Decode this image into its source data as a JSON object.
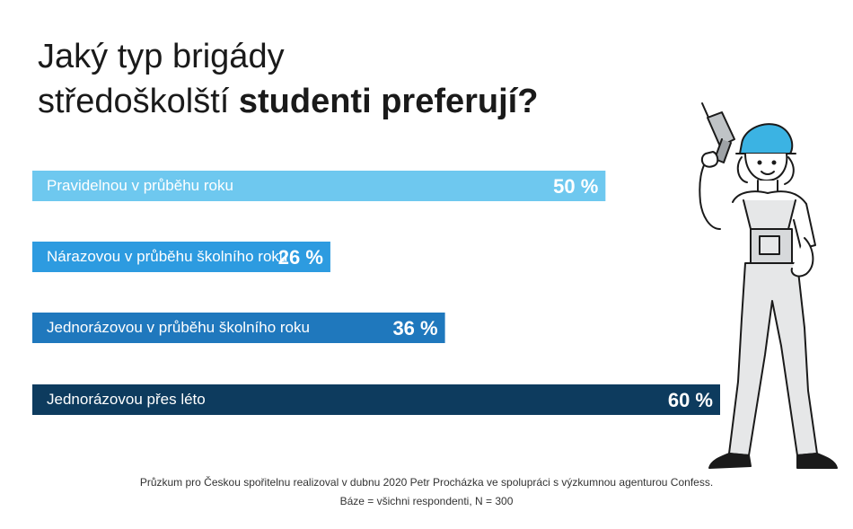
{
  "title": {
    "line1": "Jaký typ brigády",
    "line2_regular": "středoškolští ",
    "line2_bold": "studenti preferují?"
  },
  "chart_data": {
    "type": "bar",
    "orientation": "horizontal",
    "categories": [
      "Pravidelnou v průběhu roku",
      "Nárazovou v průběhu školního roku",
      "Jednorázovou v průběhu školního roku",
      "Jednorázovou přes léto"
    ],
    "values": [
      50,
      26,
      36,
      60
    ],
    "value_labels": [
      "50 %",
      "26 %",
      "36 %",
      "60 %"
    ],
    "colors": [
      "#6ec8ef",
      "#2d9be0",
      "#1f78bd",
      "#0d3b5e"
    ],
    "xlim": [
      0,
      60
    ],
    "grid": false
  },
  "footnote": {
    "line1": "Průzkum pro Českou spořitelnu realizoval v dubnu 2020 Petr Procházka ve spolupráci s výzkumnou agenturou Confess.",
    "line2": "Báze = všichni respondenti, N = 300"
  },
  "illustration": {
    "icon": "worker-with-drill-icon"
  }
}
